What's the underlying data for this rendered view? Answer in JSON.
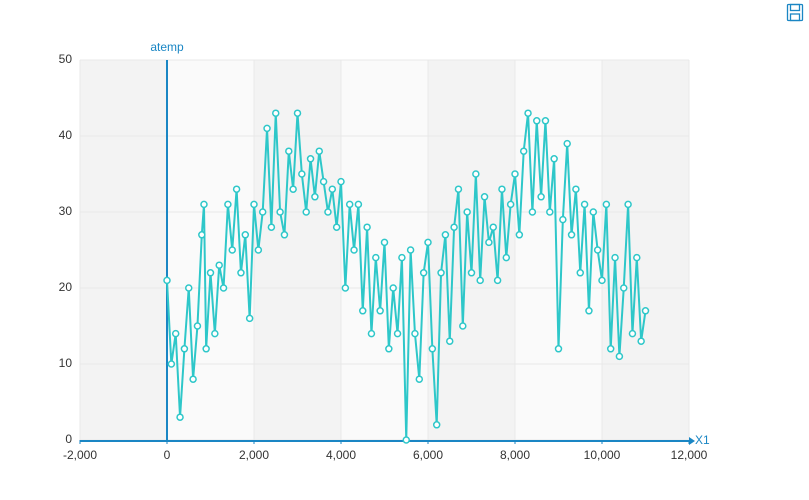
{
  "chart_data": {
    "type": "line",
    "x_label": "X1",
    "y_label": "atemp",
    "xlim": [
      -2000,
      12000
    ],
    "xticks": [
      {
        "value": -2000,
        "label": "-2,000"
      },
      0,
      {
        "value": 2000,
        "label": "2,000"
      },
      {
        "value": 4000,
        "label": "4,000"
      },
      {
        "value": 6000,
        "label": "6,000"
      },
      {
        "value": 8000,
        "label": "8,000"
      },
      {
        "value": 10000,
        "label": "10,000"
      },
      {
        "value": 12000,
        "label": "12,000"
      }
    ],
    "ylim": [
      0,
      50
    ],
    "yticks": [
      0,
      10,
      20,
      30,
      40,
      50
    ],
    "grid": true,
    "x": [
      0,
      100,
      200,
      300,
      400,
      500,
      600,
      700,
      800,
      850,
      900,
      1000,
      1100,
      1200,
      1300,
      1400,
      1500,
      1600,
      1700,
      1800,
      1900,
      2000,
      2100,
      2200,
      2300,
      2400,
      2500,
      2600,
      2700,
      2800,
      2900,
      3000,
      3100,
      3200,
      3300,
      3400,
      3500,
      3600,
      3700,
      3800,
      3900,
      4000,
      4100,
      4200,
      4300,
      4400,
      4500,
      4600,
      4700,
      4800,
      4900,
      5000,
      5100,
      5200,
      5300,
      5400,
      5500,
      5600,
      5700,
      5800,
      5900,
      6000,
      6100,
      6200,
      6300,
      6400,
      6500,
      6600,
      6700,
      6800,
      6900,
      7000,
      7100,
      7200,
      7300,
      7400,
      7500,
      7600,
      7700,
      7800,
      7900,
      8000,
      8100,
      8200,
      8300,
      8400,
      8500,
      8600,
      8700,
      8800,
      8900,
      9000,
      9100,
      9200,
      9300,
      9400,
      9500,
      9600,
      9700,
      9800,
      9900,
      10000,
      10100,
      10200,
      10300,
      10400,
      10500,
      10600,
      10700,
      10800,
      10900,
      11000
    ],
    "series": [
      {
        "name": "atemp",
        "color": "#2ec7c9",
        "values": [
          21,
          10,
          14,
          3,
          12,
          20,
          8,
          15,
          27,
          31,
          12,
          22,
          14,
          23,
          20,
          31,
          25,
          33,
          22,
          27,
          16,
          31,
          25,
          30,
          41,
          28,
          43,
          30,
          27,
          38,
          33,
          43,
          35,
          30,
          37,
          32,
          38,
          34,
          30,
          33,
          28,
          34,
          20,
          31,
          25,
          31,
          17,
          28,
          14,
          24,
          17,
          26,
          12,
          20,
          14,
          24,
          0,
          25,
          14,
          8,
          22,
          26,
          12,
          2,
          22,
          27,
          13,
          28,
          33,
          15,
          30,
          22,
          35,
          21,
          32,
          26,
          28,
          21,
          33,
          24,
          31,
          35,
          27,
          38,
          43,
          30,
          42,
          32,
          42,
          30,
          37,
          12,
          29,
          39,
          27,
          33,
          22,
          31,
          17,
          30,
          25,
          21,
          31,
          12,
          24,
          11,
          20,
          31,
          14,
          24,
          13,
          17
        ]
      }
    ]
  }
}
